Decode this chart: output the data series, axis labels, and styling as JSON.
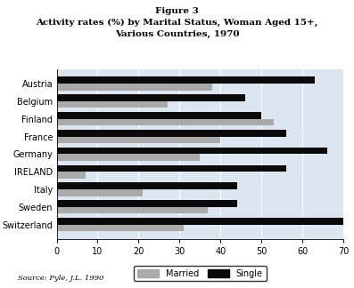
{
  "title_line1": "Figure 3",
  "title_line2": "Activity rates (%) by Marital Status, Woman Aged 15+,",
  "title_line3": "Various Countries, 1970",
  "source": "Source: Pyle, J.L. 1990",
  "countries": [
    "Austria",
    "Belgium",
    "Finland",
    "France",
    "Germany",
    "IRELAND",
    "Italy",
    "Sweden",
    "Switzerland"
  ],
  "married": [
    38,
    27,
    53,
    40,
    35,
    7,
    21,
    37,
    31
  ],
  "single": [
    63,
    46,
    50,
    56,
    66,
    56,
    44,
    44,
    71
  ],
  "married_color": "#aaaaaa",
  "single_color": "#0a0a0a",
  "background_color": "#dce6f0",
  "figure_background": "#ffffff",
  "xlim": [
    0,
    70
  ],
  "xticks": [
    0,
    10,
    20,
    30,
    40,
    50,
    60,
    70
  ],
  "bar_height": 0.38,
  "legend_labels": [
    "Married",
    "Single"
  ]
}
